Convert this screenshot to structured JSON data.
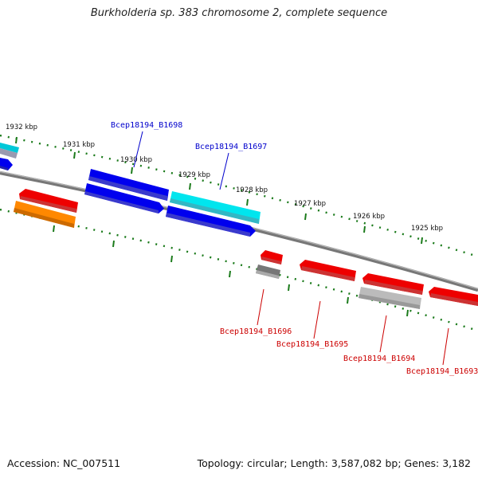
{
  "title": "Burkholderia sp. 383 chromosome 2, complete sequence",
  "footer": {
    "accession": "Accession: NC_007511",
    "summary": "Topology: circular; Length: 3,587,082 bp; Genes: 3,182"
  },
  "ticks": [
    {
      "label": "1932 kbp"
    },
    {
      "label": "1931 kbp"
    },
    {
      "label": "1930 kbp"
    },
    {
      "label": "1929 kbp"
    },
    {
      "label": "1928 kbp"
    },
    {
      "label": "1927 kbp"
    },
    {
      "label": "1926 kbp"
    },
    {
      "label": "1925 kbp"
    }
  ],
  "genes": [
    {
      "name": "Bcep18194_B1698",
      "strand": "forward",
      "color": "#0000dd"
    },
    {
      "name": "Bcep18194_B1697",
      "strand": "forward",
      "color": "#0000dd"
    },
    {
      "name": "Bcep18194_B1696",
      "strand": "reverse",
      "color": "#cc0000"
    },
    {
      "name": "Bcep18194_B1695",
      "strand": "reverse",
      "color": "#cc0000"
    },
    {
      "name": "Bcep18194_B1694",
      "strand": "reverse",
      "color": "#cc0000"
    },
    {
      "name": "Bcep18194_B1693",
      "strand": "reverse",
      "color": "#cc0000"
    }
  ],
  "colors": {
    "backbone": "#777777",
    "tick": "#1a7a1a",
    "forward_gene": "#0000ee",
    "reverse_gene": "#ee0000",
    "cyan_feature": "#00e5ee",
    "orange_feature": "#ff8800",
    "gray_feature": "#bbbbbb"
  }
}
